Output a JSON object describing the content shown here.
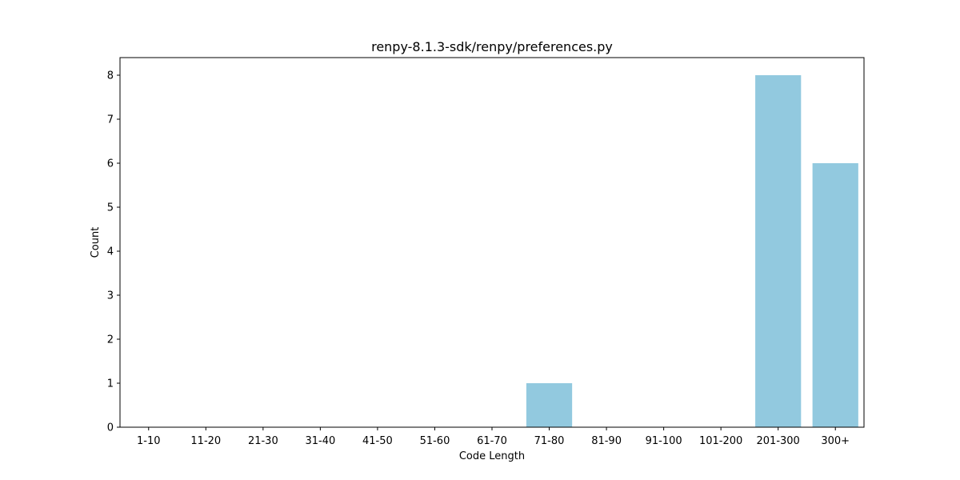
{
  "chart_data": {
    "type": "bar",
    "title": "renpy-8.1.3-sdk/renpy/preferences.py",
    "xlabel": "Code Length",
    "ylabel": "Count",
    "categories": [
      "1-10",
      "11-20",
      "21-30",
      "31-40",
      "41-50",
      "51-60",
      "61-70",
      "71-80",
      "81-90",
      "91-100",
      "101-200",
      "201-300",
      "300+"
    ],
    "values": [
      0,
      0,
      0,
      0,
      0,
      0,
      0,
      1,
      0,
      0,
      0,
      8,
      6
    ],
    "ylim": [
      0,
      8.4
    ],
    "yticks": [
      0,
      1,
      2,
      3,
      4,
      5,
      6,
      7,
      8
    ],
    "bar_color": "#92c9df",
    "grid": false,
    "legend": "none"
  }
}
